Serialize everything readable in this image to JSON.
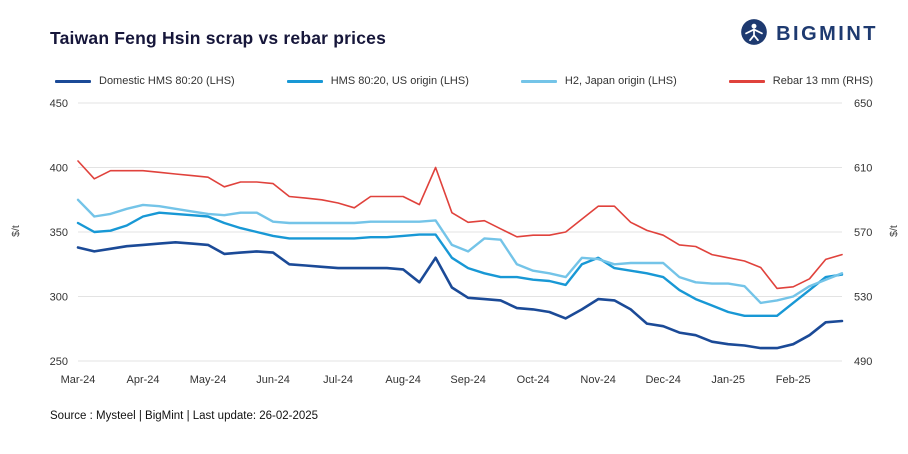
{
  "header": {
    "brand": "BIGMINT"
  },
  "footer": {
    "source": "Source : Mysteel | BigMint | Last update: 26-02-2025"
  },
  "chart_data": {
    "type": "line",
    "title": "Taiwan Feng Hsin scrap vs rebar prices",
    "grid": true,
    "legend_position": "top",
    "x_tick_labels": [
      "Mar-24",
      "Apr-24",
      "May-24",
      "Jun-24",
      "Jul-24",
      "Aug-24",
      "Sep-24",
      "Oct-24",
      "Nov-24",
      "Dec-24",
      "Jan-25",
      "Feb-25"
    ],
    "left_axis": {
      "label": "$/t",
      "min": 250,
      "max": 450,
      "ticks": [
        250,
        300,
        350,
        400,
        450
      ]
    },
    "right_axis": {
      "label": "$/t",
      "min": 490,
      "max": 650,
      "ticks": [
        490,
        530,
        570,
        610,
        650
      ]
    },
    "series": [
      {
        "name": "Domestic HMS 80:20 (LHS)",
        "axis": "left",
        "color": "#1b4a97",
        "width": 2.6,
        "values": [
          338,
          335,
          337,
          339,
          340,
          341,
          342,
          341,
          340,
          333,
          334,
          335,
          334,
          325,
          324,
          323,
          322,
          322,
          322,
          322,
          321,
          311,
          330,
          307,
          299,
          298,
          297,
          291,
          290,
          288,
          283,
          290,
          298,
          297,
          290,
          279,
          277,
          272,
          270,
          265,
          263,
          262,
          260,
          260,
          263,
          270,
          280,
          281
        ]
      },
      {
        "name": "HMS 80:20, US origin (LHS)",
        "axis": "left",
        "color": "#1898d5",
        "width": 2.4,
        "values": [
          357,
          350,
          351,
          355,
          362,
          365,
          364,
          363,
          362,
          357,
          353,
          350,
          347,
          345,
          345,
          345,
          345,
          345,
          346,
          346,
          347,
          348,
          348,
          330,
          322,
          318,
          315,
          315,
          313,
          312,
          309,
          325,
          330,
          322,
          320,
          318,
          315,
          305,
          298,
          293,
          288,
          285,
          285,
          285,
          295,
          305,
          315,
          317
        ]
      },
      {
        "name": "H2, Japan origin (LHS)",
        "axis": "left",
        "color": "#74c4e8",
        "width": 2.4,
        "values": [
          375,
          362,
          364,
          368,
          371,
          370,
          368,
          366,
          364,
          363,
          365,
          365,
          358,
          357,
          357,
          357,
          357,
          357,
          358,
          358,
          358,
          358,
          359,
          340,
          335,
          345,
          344,
          325,
          320,
          318,
          315,
          330,
          329,
          325,
          326,
          326,
          326,
          315,
          311,
          310,
          310,
          308,
          295,
          297,
          300,
          308,
          313,
          318
        ]
      },
      {
        "name": "Rebar 13 mm (RHS)",
        "axis": "right",
        "color": "#e0423c",
        "width": 1.6,
        "values": [
          614,
          603,
          608,
          608,
          608,
          607,
          606,
          605,
          604,
          598,
          601,
          601,
          600,
          592,
          591,
          590,
          588,
          585,
          592,
          592,
          592,
          587,
          610,
          582,
          576,
          577,
          572,
          567,
          568,
          568,
          570,
          578,
          586,
          586,
          576,
          571,
          568,
          562,
          561,
          556,
          554,
          552,
          548,
          535,
          536,
          541,
          553,
          556
        ]
      }
    ]
  }
}
